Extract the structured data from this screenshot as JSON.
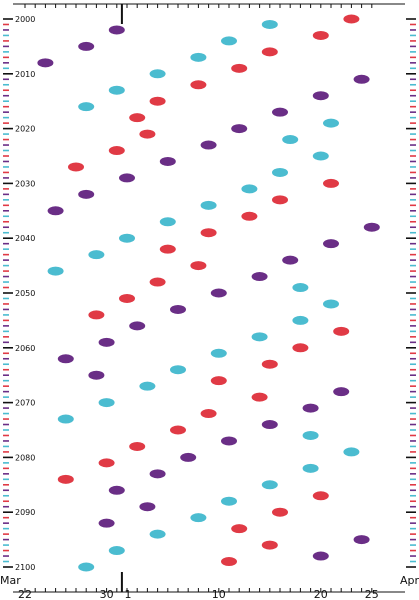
{
  "chart_data": {
    "type": "scatter",
    "title": "",
    "xlabel": "",
    "ylabel": "",
    "x_unit": "date",
    "xlim": [
      "Mar 22",
      "Apr 25"
    ],
    "ylim": [
      2000,
      2100
    ],
    "y_ticks": [
      2000,
      2010,
      2020,
      2030,
      2040,
      2050,
      2060,
      2070,
      2080,
      2090,
      2100
    ],
    "x_ticks": [
      "22",
      "30",
      "1",
      "10",
      "20",
      "25"
    ],
    "x_month_labels": [
      "Mar",
      "Apr"
    ],
    "grid": false,
    "legend": "none",
    "colors": {
      "red": "#e03a45",
      "purple": "#6a2e86",
      "cyan": "#4bbcd0"
    },
    "series": [
      {
        "color": "red",
        "points": [
          [
            "Apr 23",
            2000
          ],
          [
            "Apr 20",
            2003
          ],
          [
            "Apr 15",
            2006
          ],
          [
            "Apr 12",
            2009
          ],
          [
            "Apr 8",
            2012
          ],
          [
            "Apr 4",
            2015
          ],
          [
            "Apr 2",
            2018
          ],
          [
            "Apr 3",
            2021
          ],
          [
            "Mar 31",
            2024
          ],
          [
            "Mar 27",
            2027
          ],
          [
            "Apr 21",
            2030
          ],
          [
            "Apr 16",
            2033
          ],
          [
            "Apr 13",
            2036
          ],
          [
            "Apr 9",
            2039
          ],
          [
            "Apr 5",
            2042
          ],
          [
            "Apr 8",
            2045
          ],
          [
            "Apr 4",
            2048
          ],
          [
            "Apr 1",
            2051
          ],
          [
            "Mar 29",
            2054
          ],
          [
            "Apr 22",
            2057
          ],
          [
            "Apr 18",
            2060
          ],
          [
            "Apr 15",
            2063
          ],
          [
            "Apr 10",
            2066
          ],
          [
            "Apr 14",
            2069
          ],
          [
            "Apr 9",
            2072
          ],
          [
            "Apr 6",
            2075
          ],
          [
            "Apr 2",
            2078
          ],
          [
            "Mar 30",
            2081
          ],
          [
            "Mar 26",
            2084
          ],
          [
            "Apr 20",
            2087
          ],
          [
            "Apr 16",
            2090
          ],
          [
            "Apr 12",
            2093
          ],
          [
            "Apr 15",
            2096
          ],
          [
            "Apr 11",
            2099
          ]
        ]
      },
      {
        "color": "purple",
        "points": [
          [
            "Mar 31",
            2002
          ],
          [
            "Mar 28",
            2005
          ],
          [
            "Mar 24",
            2008
          ],
          [
            "Apr 24",
            2011
          ],
          [
            "Apr 20",
            2014
          ],
          [
            "Apr 16",
            2017
          ],
          [
            "Apr 12",
            2020
          ],
          [
            "Apr 9",
            2023
          ],
          [
            "Apr 5",
            2026
          ],
          [
            "Apr 1",
            2029
          ],
          [
            "Mar 28",
            2032
          ],
          [
            "Mar 25",
            2035
          ],
          [
            "Apr 25",
            2038
          ],
          [
            "Apr 21",
            2041
          ],
          [
            "Apr 17",
            2044
          ],
          [
            "Apr 14",
            2047
          ],
          [
            "Apr 10",
            2050
          ],
          [
            "Apr 6",
            2053
          ],
          [
            "Apr 2",
            2056
          ],
          [
            "Mar 30",
            2059
          ],
          [
            "Mar 26",
            2062
          ],
          [
            "Mar 29",
            2065
          ],
          [
            "Apr 22",
            2068
          ],
          [
            "Apr 19",
            2071
          ],
          [
            "Apr 15",
            2074
          ],
          [
            "Apr 11",
            2077
          ],
          [
            "Apr 7",
            2080
          ],
          [
            "Apr 4",
            2083
          ],
          [
            "Mar 31",
            2086
          ],
          [
            "Apr 3",
            2089
          ],
          [
            "Mar 30",
            2092
          ],
          [
            "Apr 24",
            2095
          ],
          [
            "Apr 20",
            2098
          ]
        ]
      },
      {
        "color": "cyan",
        "points": [
          [
            "Apr 15",
            2001
          ],
          [
            "Apr 11",
            2004
          ],
          [
            "Apr 8",
            2007
          ],
          [
            "Apr 4",
            2010
          ],
          [
            "Mar 31",
            2013
          ],
          [
            "Mar 28",
            2016
          ],
          [
            "Apr 21",
            2019
          ],
          [
            "Apr 17",
            2022
          ],
          [
            "Apr 20",
            2025
          ],
          [
            "Apr 16",
            2028
          ],
          [
            "Apr 13",
            2031
          ],
          [
            "Apr 9",
            2034
          ],
          [
            "Apr 5",
            2037
          ],
          [
            "Apr 1",
            2040
          ],
          [
            "Mar 29",
            2043
          ],
          [
            "Mar 25",
            2046
          ],
          [
            "Apr 18",
            2049
          ],
          [
            "Apr 21",
            2052
          ],
          [
            "Apr 18",
            2055
          ],
          [
            "Apr 14",
            2058
          ],
          [
            "Apr 10",
            2061
          ],
          [
            "Apr 6",
            2064
          ],
          [
            "Apr 3",
            2067
          ],
          [
            "Mar 30",
            2070
          ],
          [
            "Mar 26",
            2073
          ],
          [
            "Apr 19",
            2076
          ],
          [
            "Apr 23",
            2079
          ],
          [
            "Apr 19",
            2082
          ],
          [
            "Apr 15",
            2085
          ],
          [
            "Apr 11",
            2088
          ],
          [
            "Apr 8",
            2091
          ],
          [
            "Apr 4",
            2094
          ],
          [
            "Mar 31",
            2097
          ],
          [
            "Mar 28",
            2100
          ]
        ]
      }
    ]
  }
}
